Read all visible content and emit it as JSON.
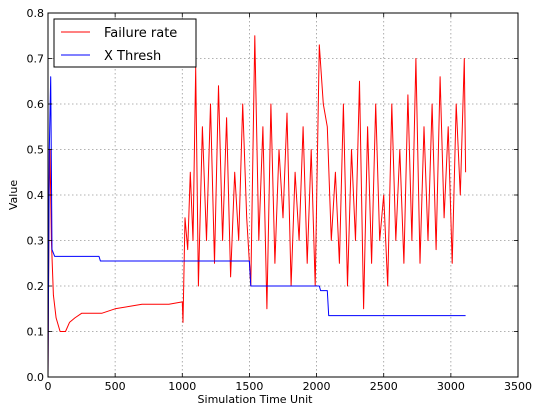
{
  "chart_data": {
    "type": "line",
    "title": "",
    "xlabel": "Simulation Time Unit",
    "ylabel": "Value",
    "xlim": [
      0,
      3500
    ],
    "ylim": [
      0.0,
      0.8
    ],
    "x_ticks": [
      0,
      500,
      1000,
      1500,
      2000,
      2500,
      3000,
      3500
    ],
    "y_ticks": [
      0.0,
      0.1,
      0.2,
      0.3,
      0.4,
      0.5,
      0.6,
      0.7,
      0.8
    ],
    "grid": true,
    "legend_position": "top-left",
    "series": [
      {
        "name": "Failure rate",
        "color": "#ff0000",
        "x": [
          0,
          8,
          15,
          25,
          40,
          60,
          90,
          130,
          160,
          200,
          250,
          300,
          400,
          500,
          600,
          700,
          800,
          900,
          1000,
          1005,
          1020,
          1040,
          1060,
          1080,
          1100,
          1120,
          1150,
          1180,
          1210,
          1240,
          1270,
          1300,
          1330,
          1360,
          1390,
          1420,
          1450,
          1480,
          1510,
          1540,
          1570,
          1600,
          1630,
          1660,
          1690,
          1720,
          1750,
          1780,
          1810,
          1840,
          1870,
          1900,
          1930,
          1960,
          1990,
          2020,
          2050,
          2080,
          2110,
          2140,
          2170,
          2200,
          2230,
          2260,
          2290,
          2320,
          2350,
          2380,
          2410,
          2440,
          2470,
          2500,
          2530,
          2560,
          2590,
          2620,
          2650,
          2680,
          2710,
          2740,
          2770,
          2800,
          2830,
          2860,
          2890,
          2920,
          2950,
          2980,
          3010,
          3040,
          3070,
          3100,
          3110
        ],
        "values": [
          0.0,
          0.4,
          0.5,
          0.3,
          0.18,
          0.13,
          0.1,
          0.1,
          0.12,
          0.13,
          0.14,
          0.14,
          0.14,
          0.15,
          0.155,
          0.16,
          0.16,
          0.16,
          0.165,
          0.12,
          0.35,
          0.28,
          0.45,
          0.3,
          0.68,
          0.2,
          0.55,
          0.3,
          0.6,
          0.25,
          0.64,
          0.3,
          0.57,
          0.22,
          0.45,
          0.3,
          0.6,
          0.35,
          0.2,
          0.75,
          0.3,
          0.55,
          0.15,
          0.6,
          0.25,
          0.5,
          0.35,
          0.58,
          0.2,
          0.45,
          0.3,
          0.55,
          0.25,
          0.5,
          0.2,
          0.73,
          0.6,
          0.55,
          0.3,
          0.45,
          0.25,
          0.6,
          0.2,
          0.5,
          0.3,
          0.65,
          0.15,
          0.55,
          0.25,
          0.6,
          0.3,
          0.4,
          0.2,
          0.6,
          0.3,
          0.5,
          0.25,
          0.62,
          0.3,
          0.7,
          0.25,
          0.55,
          0.3,
          0.6,
          0.28,
          0.66,
          0.35,
          0.55,
          0.25,
          0.6,
          0.4,
          0.7,
          0.45
        ]
      },
      {
        "name": "X Thresh",
        "color": "#0000ff",
        "x": [
          0,
          10,
          20,
          30,
          50,
          380,
          390,
          1000,
          1500,
          1510,
          2020,
          2030,
          2080,
          2090,
          3110
        ],
        "values": [
          0.0,
          0.5,
          0.66,
          0.28,
          0.265,
          0.265,
          0.255,
          0.255,
          0.255,
          0.2,
          0.2,
          0.19,
          0.19,
          0.135,
          0.135
        ]
      }
    ]
  }
}
